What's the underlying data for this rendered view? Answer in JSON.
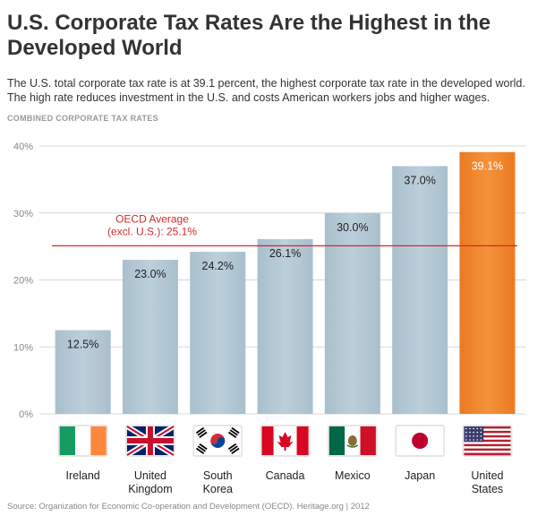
{
  "title": "U.S. Corporate Tax Rates Are the Highest in the Developed World",
  "subtitle": "The U.S. total corporate tax rate is at 39.1 percent, the highest corporate tax rate in the developed world. The high rate reduces investment in the U.S. and costs American workers jobs and higher wages.",
  "section_label": "COMBINED CORPORATE TAX RATES",
  "source": "Source: Organization for Economic Co-operation and Development (OECD). Heritage.org | 2012",
  "chart_data": {
    "type": "bar",
    "categories": [
      "Ireland",
      "United Kingdom",
      "South Korea",
      "Canada",
      "Mexico",
      "Japan",
      "United States"
    ],
    "category_lines": [
      [
        "Ireland"
      ],
      [
        "United",
        "Kingdom"
      ],
      [
        "South",
        "Korea"
      ],
      [
        "Canada"
      ],
      [
        "Mexico"
      ],
      [
        "Japan"
      ],
      [
        "United",
        "States"
      ]
    ],
    "values": [
      12.5,
      23.0,
      24.2,
      26.1,
      30.0,
      37.0,
      39.1
    ],
    "value_labels": [
      "12.5%",
      "23.0%",
      "24.2%",
      "26.1%",
      "30.0%",
      "37.0%",
      "39.1%"
    ],
    "yticks": [
      0,
      10,
      20,
      30,
      40
    ],
    "ytick_labels": [
      "0%",
      "10%",
      "20%",
      "30%",
      "40%"
    ],
    "ylim": [
      0,
      40
    ],
    "reference_line": {
      "value": 25.1,
      "label_lines": [
        "OECD Average",
        "(excl. U.S.): 25.1%"
      ]
    },
    "colors": {
      "bar": "#b3c7d3",
      "highlight": "#f28a30",
      "reference": "#d02b2b"
    },
    "highlight_index": 6,
    "flags": [
      "ireland-flag",
      "uk-flag",
      "south-korea-flag",
      "canada-flag",
      "mexico-flag",
      "japan-flag",
      "us-flag"
    ]
  }
}
